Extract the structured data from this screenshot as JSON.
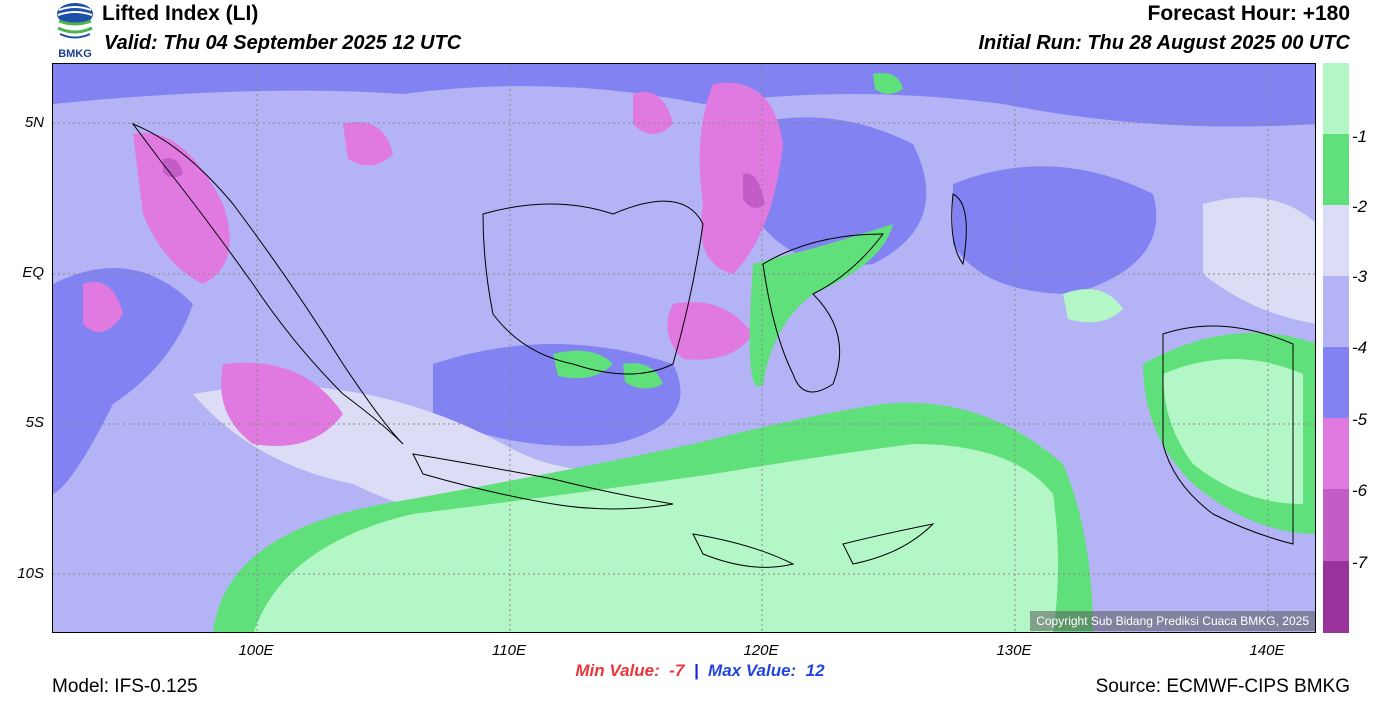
{
  "header": {
    "title": "Lifted Index (LI)",
    "valid": "Valid: Thu 04 September 2025 12 UTC",
    "forecast_hour": "Forecast Hour: +180",
    "initial_run": "Initial Run: Thu 28 August 2025 00 UTC"
  },
  "logo": {
    "text": "BMKG"
  },
  "axes": {
    "lat_labels": [
      "5N",
      "EQ",
      "5S",
      "10S"
    ],
    "lon_labels": [
      "100E",
      "110E",
      "120E",
      "130E",
      "140E"
    ]
  },
  "colorbar": {
    "labels": [
      "-1",
      "-2",
      "-3",
      "-4",
      "-5",
      "-6",
      "-7"
    ],
    "colors": [
      "#b4f7c6",
      "#5fe07a",
      "#dcdcf6",
      "#b3b3f5",
      "#8282f2",
      "#e07ae0",
      "#c45cc8",
      "#99339c"
    ]
  },
  "stats": {
    "min_label": "Min Value:",
    "min_value": "-7",
    "separator": "|",
    "max_label": "Max Value:",
    "max_value": "12"
  },
  "footer": {
    "model": "Model: IFS-0.125",
    "source": "Source: ECMWF-CIPS BMKG",
    "copyright": "Copyright Sub Bidang Prediksi Cuaca BMKG, 2025"
  }
}
